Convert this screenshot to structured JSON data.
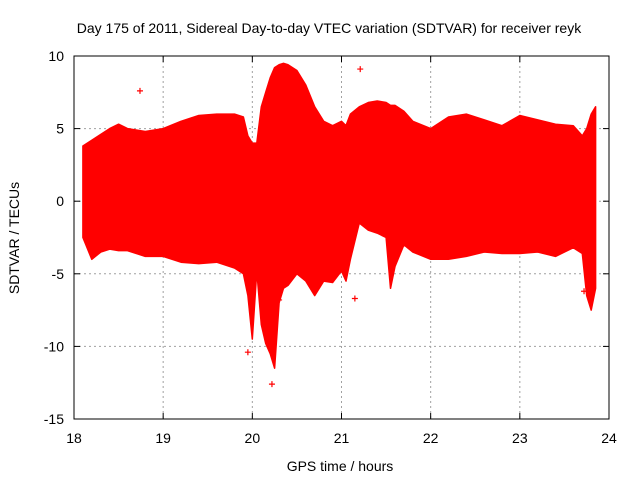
{
  "chart_data": {
    "type": "line",
    "title": "Day 175 of 2011, Sidereal Day-to-day VTEC variation (SDTVAR) for receiver reyk",
    "xlabel": "GPS time / hours",
    "ylabel": "SDTVAR / TECUs",
    "xlim": [
      18,
      24
    ],
    "ylim": [
      -15,
      10
    ],
    "xticks": [
      18,
      19,
      20,
      21,
      22,
      23,
      24
    ],
    "yticks": [
      -15,
      -10,
      -5,
      0,
      5,
      10
    ],
    "grid": true,
    "series": [
      {
        "name": "SDTVAR",
        "color": "#ff0000",
        "x": [
          18.1,
          18.2,
          18.3,
          18.4,
          18.5,
          18.6,
          18.8,
          19.0,
          19.2,
          19.4,
          19.6,
          19.8,
          19.9,
          19.95,
          20.0,
          20.05,
          20.1,
          20.15,
          20.2,
          20.25,
          20.3,
          20.35,
          20.4,
          20.5,
          20.6,
          20.7,
          20.8,
          20.9,
          21.0,
          21.05,
          21.1,
          21.2,
          21.3,
          21.4,
          21.5,
          21.55,
          21.6,
          21.7,
          21.8,
          22.0,
          22.2,
          22.4,
          22.6,
          22.8,
          23.0,
          23.2,
          23.4,
          23.6,
          23.7,
          23.75,
          23.8,
          23.85
        ],
        "upper": [
          3.8,
          4.2,
          4.6,
          5.0,
          5.3,
          5.0,
          4.8,
          5.0,
          5.5,
          5.9,
          6.0,
          6.0,
          5.8,
          4.5,
          4.0,
          4.0,
          6.5,
          7.5,
          8.5,
          9.2,
          9.4,
          9.5,
          9.4,
          9.0,
          8.0,
          6.5,
          5.5,
          5.2,
          5.5,
          5.2,
          6.0,
          6.5,
          6.8,
          6.9,
          6.8,
          6.6,
          6.6,
          6.2,
          5.5,
          5.0,
          5.8,
          6.0,
          5.6,
          5.2,
          5.9,
          5.6,
          5.3,
          5.2,
          4.5,
          5.0,
          6.0,
          6.5
        ],
        "lower": [
          -2.5,
          -4.0,
          -3.5,
          -3.3,
          -3.4,
          -3.4,
          -3.8,
          -3.8,
          -4.2,
          -4.3,
          -4.2,
          -4.6,
          -5.0,
          -6.5,
          -9.5,
          -4.8,
          -8.5,
          -9.8,
          -10.5,
          -11.5,
          -7.0,
          -6.0,
          -5.8,
          -5.0,
          -5.5,
          -6.5,
          -5.5,
          -5.6,
          -4.8,
          -5.5,
          -4.0,
          -1.5,
          -2.0,
          -2.2,
          -2.5,
          -6.0,
          -4.5,
          -3.0,
          -3.5,
          -4.0,
          -4.0,
          -3.8,
          -3.5,
          -3.6,
          -3.6,
          -3.5,
          -3.8,
          -3.2,
          -3.6,
          -6.5,
          -7.5,
          -6.0
        ],
        "outliers": [
          {
            "x": 18.74,
            "y": 7.6
          },
          {
            "x": 21.21,
            "y": 9.1
          },
          {
            "x": 19.95,
            "y": -10.4
          },
          {
            "x": 20.22,
            "y": -12.6
          },
          {
            "x": 21.15,
            "y": -6.7
          },
          {
            "x": 20.3,
            "y": -6.8
          },
          {
            "x": 23.72,
            "y": -6.2
          }
        ]
      }
    ]
  }
}
